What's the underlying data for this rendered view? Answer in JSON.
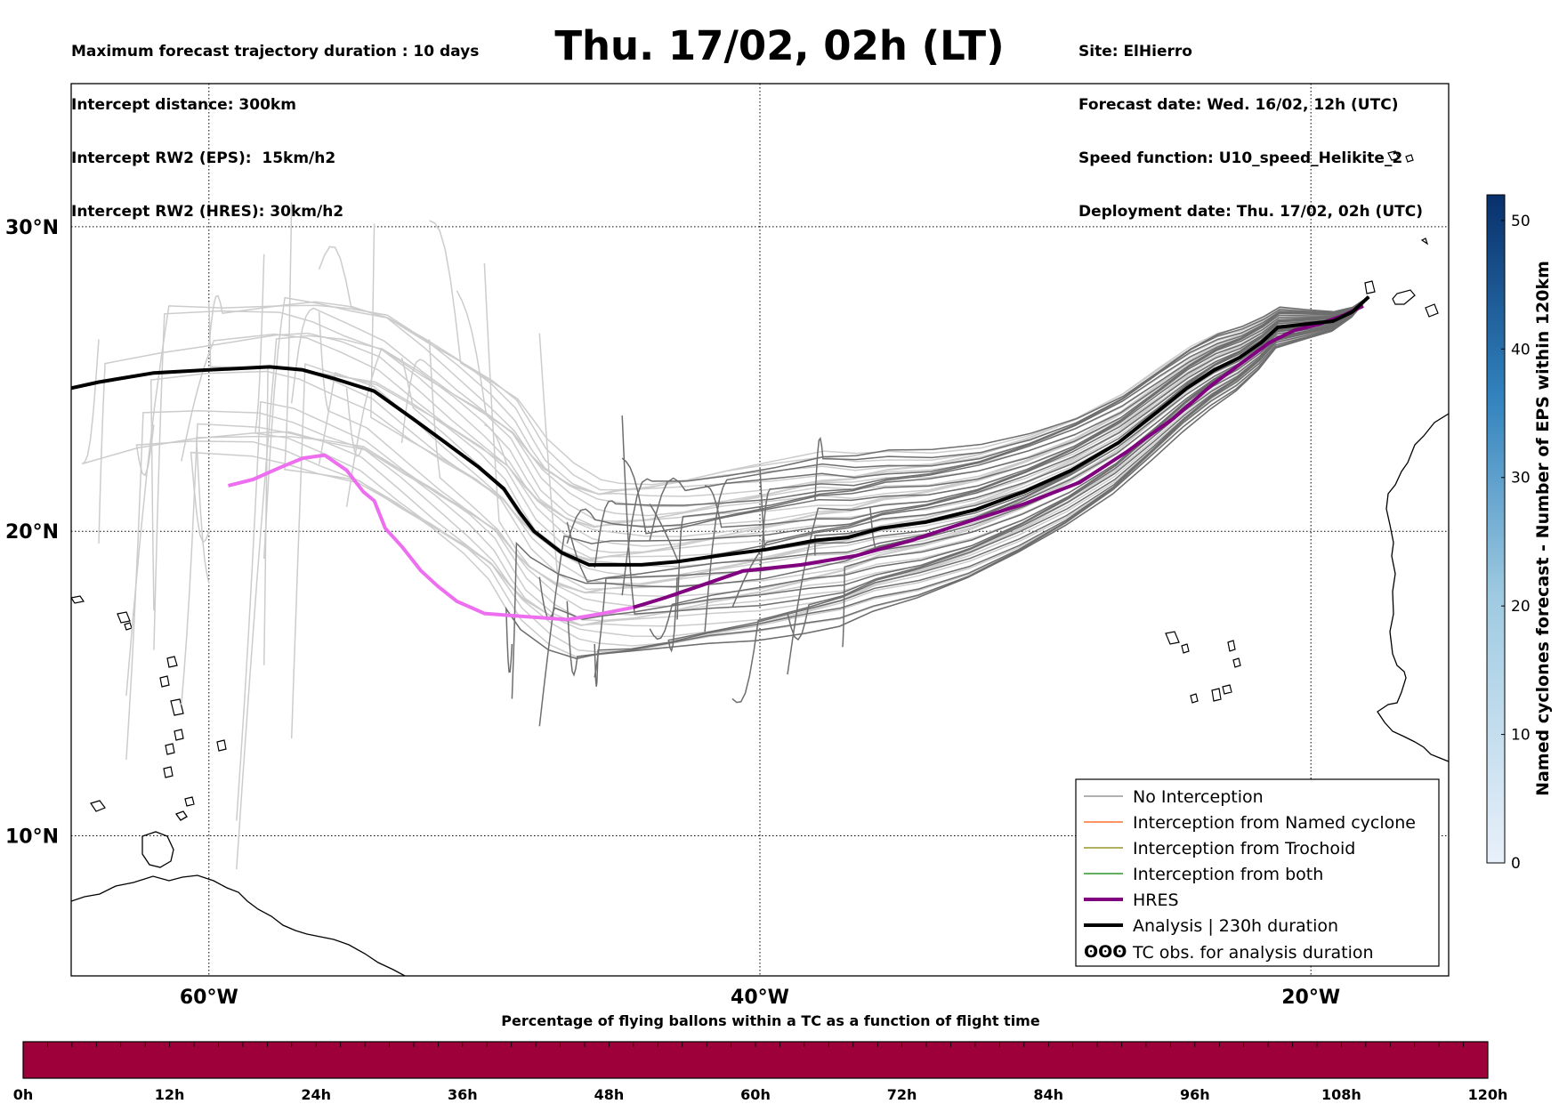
{
  "header": {
    "title": "Thu. 17/02, 02h (LT)",
    "left_lines": [
      "Maximum forecast trajectory duration : 10 days",
      "Intercept distance: 300km",
      "Intercept RW2 (EPS):  15km/h2",
      "Intercept RW2 (HRES): 30km/h2"
    ],
    "right_lines": [
      "Site: ElHierro",
      "Forecast date: Wed. 16/02, 12h (UTC)",
      "Speed function: U10_speed_Helikite_2",
      "Deployment date: Thu. 17/02, 02h (UTC)"
    ]
  },
  "map": {
    "lon_range": [
      -65,
      -15
    ],
    "lat_range": [
      5.4,
      34.7
    ],
    "lat_labels": [
      "30°N",
      "20°N",
      "10°N"
    ],
    "lat_values": [
      30,
      20,
      10
    ],
    "lon_labels": [
      "60°W",
      "40°W",
      "20°W"
    ],
    "lon_values": [
      -60,
      -40,
      -20
    ],
    "grid": true,
    "grid_style": "dotted",
    "colors": {
      "ens_far": "#cccccc",
      "ens_near": "#6e6e6e",
      "hres_far": "#ee6ef0",
      "hres_near": "#800080",
      "analysis": "#000000",
      "coast": "#000000"
    }
  },
  "trajectories": {
    "analysis": [
      [
        -17.9,
        27.7
      ],
      [
        -18.5,
        27.2
      ],
      [
        -19.2,
        26.9
      ],
      [
        -20.2,
        26.8
      ],
      [
        -21.2,
        26.7
      ],
      [
        -21.8,
        26.2
      ],
      [
        -22.6,
        25.7
      ],
      [
        -23.5,
        25.3
      ],
      [
        -24.5,
        24.7
      ],
      [
        -25.6,
        23.9
      ],
      [
        -27,
        22.9
      ],
      [
        -28.7,
        22
      ],
      [
        -30.4,
        21.3
      ],
      [
        -32.2,
        20.7
      ],
      [
        -34,
        20.3
      ],
      [
        -35.6,
        20.1
      ],
      [
        -36.8,
        19.8
      ],
      [
        -38,
        19.7
      ],
      [
        -39.8,
        19.4
      ],
      [
        -41.5,
        19.2
      ],
      [
        -43,
        19
      ],
      [
        -44.3,
        18.9
      ],
      [
        -45.5,
        18.9
      ],
      [
        -46.2,
        18.9
      ],
      [
        -47.2,
        19.3
      ],
      [
        -48.2,
        20
      ],
      [
        -48.7,
        20.6
      ],
      [
        -49.3,
        21.4
      ],
      [
        -50.2,
        22.1
      ],
      [
        -51.4,
        22.9
      ],
      [
        -52.6,
        23.7
      ],
      [
        -54,
        24.6
      ],
      [
        -55.4,
        25
      ],
      [
        -56.6,
        25.3
      ],
      [
        -57.8,
        25.4
      ],
      [
        -60,
        25.3
      ],
      [
        -62,
        25.2
      ],
      [
        -64,
        24.9
      ],
      [
        -65,
        24.7
      ]
    ],
    "hres_near": [
      [
        -18.1,
        27.4
      ],
      [
        -18.8,
        27.1
      ],
      [
        -19.7,
        26.8
      ],
      [
        -20.6,
        26.6
      ],
      [
        -21.5,
        26.2
      ],
      [
        -22.4,
        25.6
      ],
      [
        -23.6,
        24.8
      ],
      [
        -25,
        23.7
      ],
      [
        -26.7,
        22.6
      ],
      [
        -28.4,
        21.6
      ],
      [
        -30.4,
        20.9
      ],
      [
        -32.5,
        20.3
      ],
      [
        -34.5,
        19.7
      ],
      [
        -36.5,
        19.2
      ],
      [
        -38.5,
        18.9
      ],
      [
        -40.6,
        18.7
      ],
      [
        -42.2,
        18.2
      ],
      [
        -43.5,
        17.8
      ],
      [
        -44.6,
        17.5
      ]
    ],
    "hres_far": [
      [
        -44.6,
        17.5
      ],
      [
        -45.7,
        17.3
      ],
      [
        -47,
        17.1
      ],
      [
        -48.5,
        17.2
      ],
      [
        -50,
        17.3
      ],
      [
        -51,
        17.7
      ],
      [
        -51.7,
        18.2
      ],
      [
        -52.3,
        18.7
      ],
      [
        -53,
        19.5
      ],
      [
        -53.6,
        20.1
      ],
      [
        -54,
        21.0
      ],
      [
        -54.4,
        21.3
      ],
      [
        -55,
        22
      ],
      [
        -55.8,
        22.5
      ],
      [
        -56.6,
        22.4
      ],
      [
        -57.4,
        22.1
      ],
      [
        -58.4,
        21.7
      ],
      [
        -59.3,
        21.5
      ]
    ],
    "ens_near_endpoints": [
      [
        -49,
        16.3
      ],
      [
        -47,
        17.7
      ],
      [
        -46,
        16.3
      ],
      [
        -43,
        18.5
      ],
      [
        -41,
        14.5
      ],
      [
        -39,
        17.3
      ],
      [
        -45,
        23.8
      ],
      [
        -48,
        18.5
      ],
      [
        -44,
        16.8
      ],
      [
        -37,
        16.2
      ],
      [
        -36,
        20.8
      ],
      [
        -49,
        14.5
      ],
      [
        -46,
        15.2
      ],
      [
        -47,
        20.3
      ],
      [
        -40,
        22.1
      ],
      [
        -38,
        19.2
      ],
      [
        -44,
        20.9
      ],
      [
        -41,
        17.5
      ],
      [
        -48,
        13.6
      ],
      [
        -42,
        21.5
      ],
      [
        -39,
        15.3
      ],
      [
        -45,
        22.4
      ],
      [
        -47,
        19.6
      ],
      [
        -43,
        17.1
      ],
      [
        -46,
        18.8
      ],
      [
        -40,
        18.4
      ],
      [
        -44,
        19.7
      ],
      [
        -42,
        16.7
      ],
      [
        -38,
        21.0
      ],
      [
        -45,
        17.9
      ]
    ],
    "ens_far_endpoints": [
      [
        -57,
        30.8
      ],
      [
        -60,
        20.0
      ],
      [
        -62,
        23.5
      ],
      [
        -64,
        26.3
      ],
      [
        -58,
        29.1
      ],
      [
        -55,
        24.7
      ],
      [
        -60,
        18.3
      ],
      [
        -61,
        14.3
      ],
      [
        -63,
        12.5
      ],
      [
        -59,
        10.5
      ],
      [
        -56,
        27.2
      ],
      [
        -52,
        26.3
      ],
      [
        -50,
        28.8
      ],
      [
        -48,
        26.5
      ],
      [
        -54,
        30.1
      ],
      [
        -62,
        17.4
      ],
      [
        -58,
        15.6
      ],
      [
        -56,
        22.2
      ],
      [
        -53,
        25.7
      ],
      [
        -60,
        27.5
      ],
      [
        -57,
        13.2
      ],
      [
        -50,
        23.5
      ],
      [
        -61,
        22.3
      ],
      [
        -64,
        19.6
      ],
      [
        -59,
        8.9
      ],
      [
        -55,
        20.8
      ],
      [
        -51,
        27.9
      ],
      [
        -62,
        16.1
      ],
      [
        -57,
        24.2
      ],
      [
        -53,
        22.9
      ],
      [
        -60,
        26.1
      ],
      [
        -63,
        14.6
      ],
      [
        -58,
        19.1
      ],
      [
        -56,
        28.6
      ],
      [
        -52,
        30.2
      ]
    ]
  },
  "coast_labels": [],
  "legend": {
    "items": [
      {
        "label": "No Interception",
        "color": "#808080",
        "width": 1.2
      },
      {
        "label": "Interception from Named cyclone",
        "color": "#ff5500",
        "width": 1.2
      },
      {
        "label": "Interception from Trochoid",
        "color": "#808000",
        "width": 1.2
      },
      {
        "label": "Interception from both",
        "color": "#008000",
        "width": 1.2
      },
      {
        "label": "HRES",
        "color": "#800080",
        "width": 4
      },
      {
        "label": "Analysis | 230h duration",
        "color": "#000000",
        "width": 4
      }
    ],
    "tc_symbol": "ʘʘʘ",
    "tc_label": "TC obs. for analysis duration"
  },
  "colorbar": {
    "label": "Named cyclones forecast - Number of EPS within 120km",
    "ticks": [
      "0",
      "10",
      "20",
      "30",
      "40",
      "50"
    ],
    "tick_values": [
      0,
      10,
      20,
      30,
      40,
      50
    ],
    "max": 52,
    "color_low": "#e8f0fa",
    "color_high": "#08306b"
  },
  "bottom_bar": {
    "title": "Percentage of flying ballons within a TC as a function of flight time",
    "color": "#9e003a",
    "ticks": [
      "0h",
      "12h",
      "24h",
      "36h",
      "48h",
      "60h",
      "72h",
      "84h",
      "96h",
      "108h",
      "120h"
    ]
  }
}
